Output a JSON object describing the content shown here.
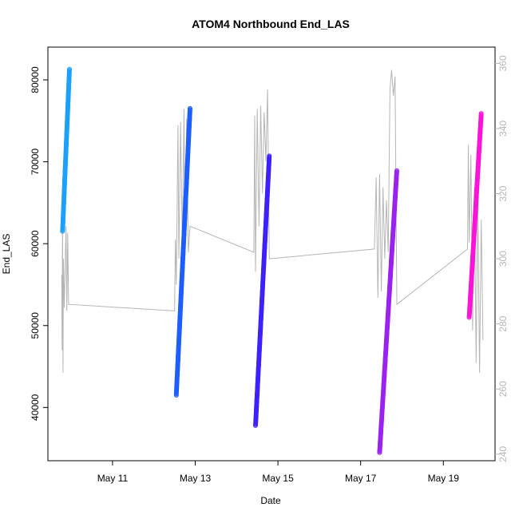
{
  "chart_data": {
    "type": "scatter",
    "title": "ATOM4 Northbound End_LAS",
    "xlabel": "Date",
    "ylabel": "End_LAS",
    "x_tick_labels": [
      "May 11",
      "May 13",
      "May 15",
      "May 17",
      "May 19"
    ],
    "x_ticks": [
      "2023-05-11",
      "2023-05-13",
      "2023-05-15",
      "2023-05-17",
      "2023-05-19"
    ],
    "xlim": [
      "2023-05-09T10:30",
      "2023-05-20T06:00"
    ],
    "ylim": [
      33500,
      84000
    ],
    "y_ticks": [
      40000,
      50000,
      60000,
      70000,
      80000
    ],
    "y_tick_labels": [
      "40000",
      "50000",
      "60000",
      "70000",
      "80000"
    ],
    "y2_ticks": [
      240,
      260,
      280,
      300,
      320,
      340,
      360
    ],
    "y2_tick_labels": [
      "240",
      "260",
      "280",
      "300",
      "320",
      "340",
      "360"
    ],
    "y2lim": [
      238,
      365
    ],
    "grid": false,
    "series": [
      {
        "color": "#1a9fff",
        "x": [
          "2023-05-09T19:00",
          "2023-05-09T23:00"
        ],
        "y": [
          61500,
          81300
        ]
      },
      {
        "color": "#1a5cff",
        "x": [
          "2023-05-12T13:00",
          "2023-05-12T21:00"
        ],
        "y": [
          41500,
          76500
        ]
      },
      {
        "color": "#3a1fff",
        "x": [
          "2023-05-14T11:00",
          "2023-05-14T19:00"
        ],
        "y": [
          37800,
          70700
        ]
      },
      {
        "color": "#9a1ff0",
        "x": [
          "2023-05-17T11:00",
          "2023-05-17T21:00"
        ],
        "y": [
          34500,
          68900
        ]
      },
      {
        "color": "#ff10d8",
        "x": [
          "2023-05-19T15:00",
          "2023-05-19T22:00"
        ],
        "y": [
          51000,
          75900
        ]
      }
    ],
    "secondary_line": {
      "color": "#b5b5b5",
      "points": [
        [
          "2023-05-09T18:30",
          295
        ],
        [
          "2023-05-09T18:45",
          272
        ],
        [
          "2023-05-09T19:00",
          315
        ],
        [
          "2023-05-09T19:15",
          265
        ],
        [
          "2023-05-09T19:30",
          300
        ],
        [
          "2023-05-09T20:00",
          285
        ],
        [
          "2023-05-09T21:00",
          310
        ],
        [
          "2023-05-09T21:30",
          284
        ],
        [
          "2023-05-09T22:00",
          308
        ],
        [
          "2023-05-09T22:30",
          286
        ],
        [
          "2023-05-12T12:00",
          284
        ],
        [
          "2023-05-12T12:30",
          306
        ],
        [
          "2023-05-12T13:00",
          292
        ],
        [
          "2023-05-12T14:00",
          341
        ],
        [
          "2023-05-12T14:30",
          300
        ],
        [
          "2023-05-12T15:30",
          342
        ],
        [
          "2023-05-12T16:30",
          304
        ],
        [
          "2023-05-12T17:30",
          346
        ],
        [
          "2023-05-12T18:00",
          300
        ],
        [
          "2023-05-12T19:00",
          343
        ],
        [
          "2023-05-12T20:00",
          302
        ],
        [
          "2023-05-12T21:00",
          310
        ],
        [
          "2023-05-14T10:00",
          302
        ],
        [
          "2023-05-14T10:30",
          344
        ],
        [
          "2023-05-14T11:00",
          296
        ],
        [
          "2023-05-14T12:00",
          346
        ],
        [
          "2023-05-14T13:00",
          310
        ],
        [
          "2023-05-14T14:00",
          347
        ],
        [
          "2023-05-14T15:00",
          320
        ],
        [
          "2023-05-14T16:00",
          345
        ],
        [
          "2023-05-14T17:00",
          330
        ],
        [
          "2023-05-14T18:00",
          352
        ],
        [
          "2023-05-14T19:00",
          300
        ],
        [
          "2023-05-17T08:00",
          303
        ],
        [
          "2023-05-17T09:00",
          325
        ],
        [
          "2023-05-17T10:00",
          288
        ],
        [
          "2023-05-17T11:00",
          326
        ],
        [
          "2023-05-17T12:00",
          290
        ],
        [
          "2023-05-17T13:00",
          322
        ],
        [
          "2023-05-17T14:00",
          300
        ],
        [
          "2023-05-17T15:00",
          318
        ],
        [
          "2023-05-17T16:00",
          302
        ],
        [
          "2023-05-17T17:00",
          352
        ],
        [
          "2023-05-17T18:00",
          358
        ],
        [
          "2023-05-17T19:00",
          350
        ],
        [
          "2023-05-17T20:00",
          356
        ],
        [
          "2023-05-17T21:00",
          286
        ],
        [
          "2023-05-19T14:00",
          303
        ],
        [
          "2023-05-19T14:30",
          335
        ],
        [
          "2023-05-19T15:00",
          305
        ],
        [
          "2023-05-19T16:00",
          332
        ],
        [
          "2023-05-19T17:00",
          278
        ],
        [
          "2023-05-19T18:00",
          322
        ],
        [
          "2023-05-19T19:00",
          268
        ],
        [
          "2023-05-19T20:00",
          318
        ],
        [
          "2023-05-19T21:00",
          265
        ],
        [
          "2023-05-19T22:00",
          312
        ],
        [
          "2023-05-19T23:00",
          275
        ]
      ]
    }
  }
}
